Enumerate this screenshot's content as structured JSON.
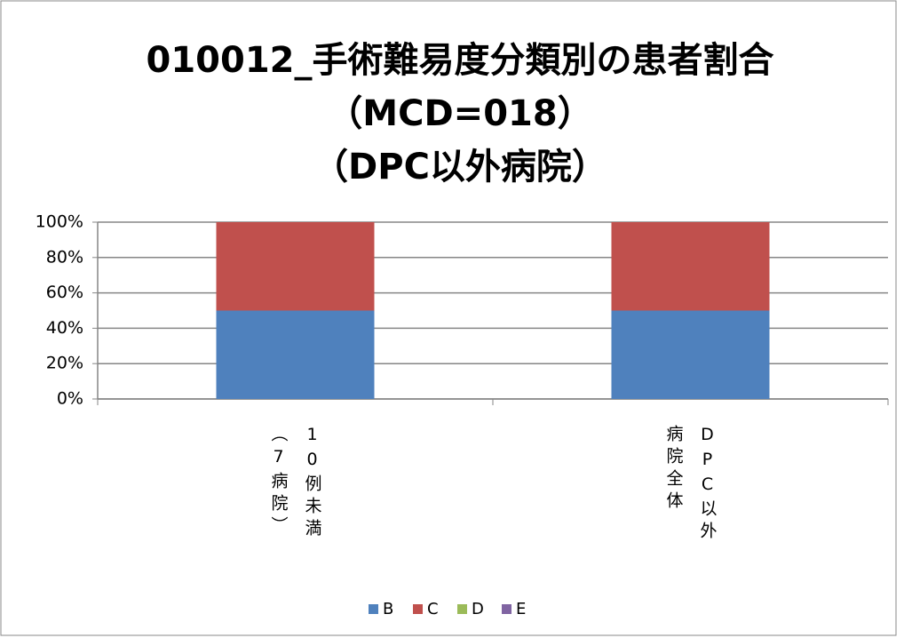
{
  "chart_data": {
    "type": "stacked_bar",
    "title": [
      "010012_手術難易度分類別の患者割合",
      "（MCD=018）",
      "（DPC以外病院）"
    ],
    "categories": [
      "10例未満（7病院）",
      "DPC以外病院全体"
    ],
    "series": [
      {
        "name": "B",
        "color": "#4f81bd",
        "values": [
          50,
          50
        ]
      },
      {
        "name": "C",
        "color": "#c0504d",
        "values": [
          50,
          50
        ]
      },
      {
        "name": "D",
        "color": "#9bbb59",
        "values": [
          0,
          0
        ]
      },
      {
        "name": "E",
        "color": "#8064a2",
        "values": [
          0,
          0
        ]
      }
    ],
    "ylim": [
      0,
      100
    ],
    "yticks": [
      {
        "value": 0,
        "label": "0%"
      },
      {
        "value": 20,
        "label": "20%"
      },
      {
        "value": 40,
        "label": "40%"
      },
      {
        "value": 60,
        "label": "60%"
      },
      {
        "value": 80,
        "label": "80%"
      },
      {
        "value": 100,
        "label": "100%"
      }
    ],
    "grid": true,
    "legend": "bottom"
  }
}
